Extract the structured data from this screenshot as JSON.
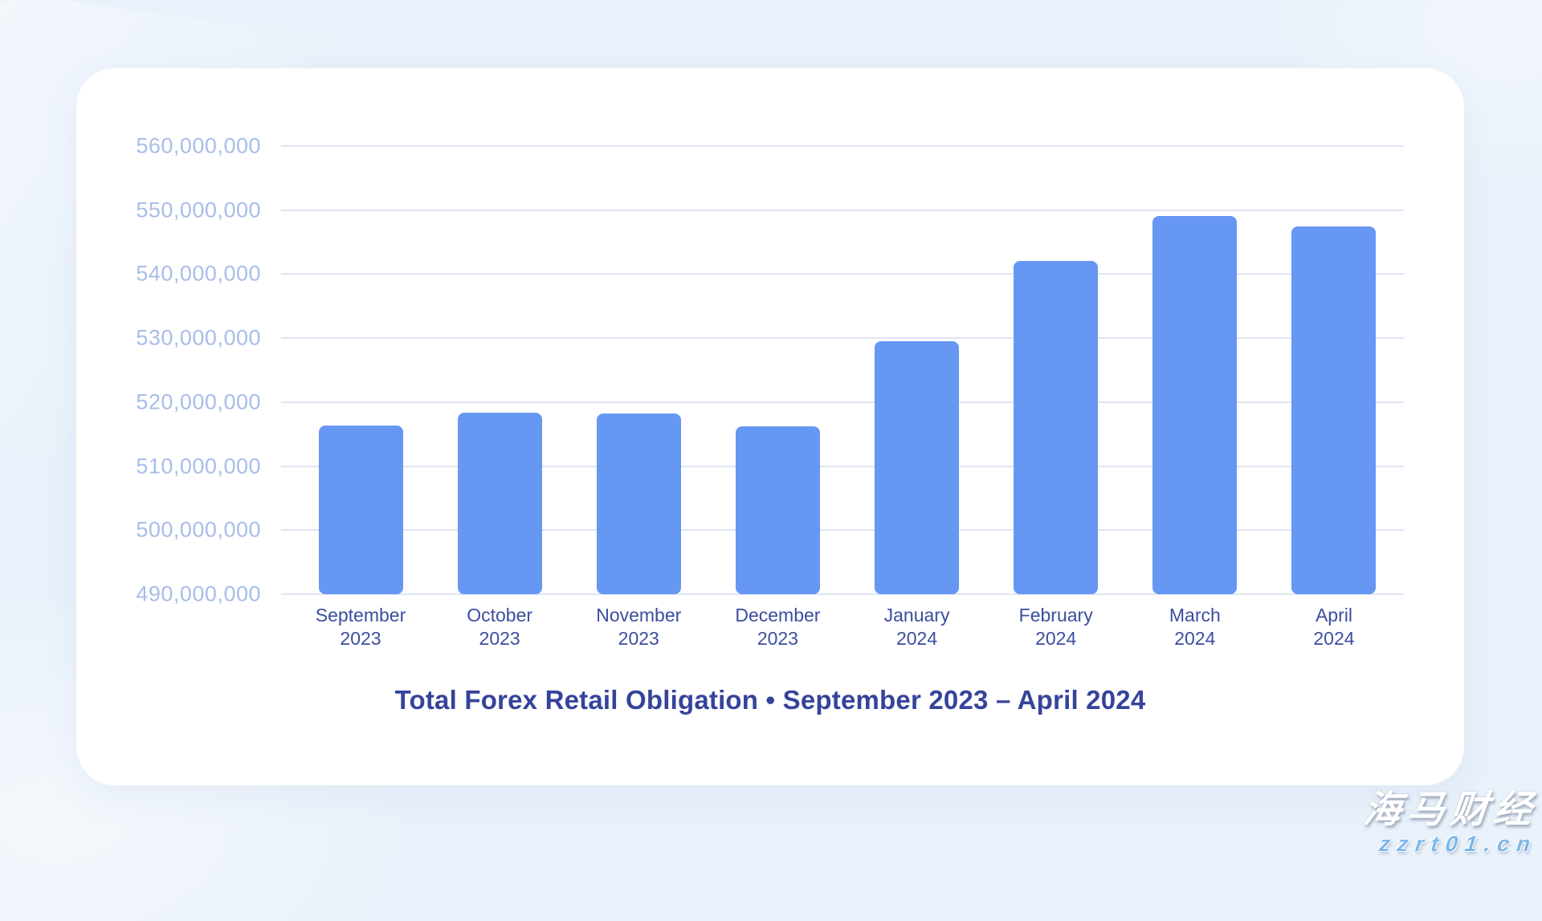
{
  "page": {
    "background_color": "#e9f1fa",
    "card_color": "#ffffff"
  },
  "chart_data": {
    "type": "bar",
    "title": "Total Forex Retail Obligation  •  September 2023 – April 2024",
    "categories": [
      {
        "month": "September",
        "year": "2023"
      },
      {
        "month": "October",
        "year": "2023"
      },
      {
        "month": "November",
        "year": "2023"
      },
      {
        "month": "December",
        "year": "2023"
      },
      {
        "month": "January",
        "year": "2024"
      },
      {
        "month": "February",
        "year": "2024"
      },
      {
        "month": "March",
        "year": "2024"
      },
      {
        "month": "April",
        "year": "2024"
      }
    ],
    "values": [
      516300000,
      518400000,
      518200000,
      516200000,
      529500000,
      542000000,
      549100000,
      547500000
    ],
    "xlabel": "",
    "ylabel": "",
    "ylim": [
      490000000,
      560000000
    ],
    "ytick_step": 10000000,
    "ytick_labels": [
      "490,000,000",
      "500,000,000",
      "510,000,000",
      "520,000,000",
      "530,000,000",
      "540,000,000",
      "550,000,000",
      "560,000,000"
    ],
    "grid": true,
    "legend": false,
    "bar_color": "#6697f3",
    "gridline_color": "#dee5f4",
    "axis_label_color": "#a8bde9",
    "category_label_color": "#3c4d9e",
    "title_color": "#35449a"
  },
  "watermark": {
    "brand": "海马财经",
    "url": "zzrt01.cn",
    "brand_color": "#ffffff",
    "url_color": "#7cb7e9"
  }
}
